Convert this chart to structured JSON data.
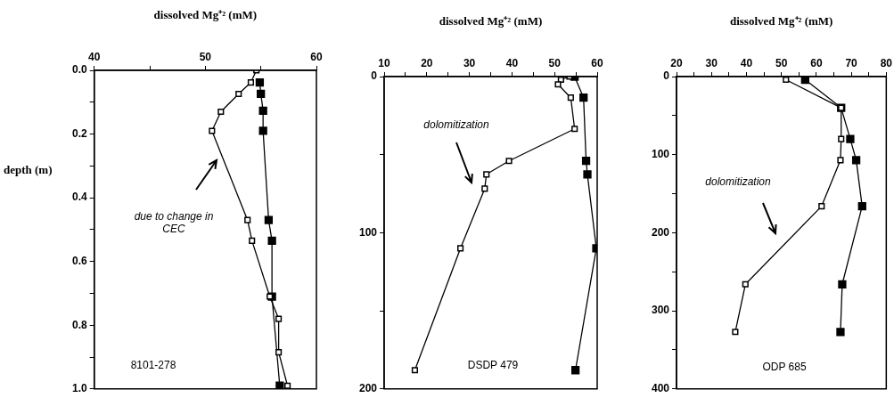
{
  "chart_data": [
    {
      "type": "line",
      "xlabel": "dissolved Mg⁺² (mM)",
      "ylabel": "depth (m)",
      "xlim": [
        40,
        60
      ],
      "xticks": [
        40,
        {
          "value": 45,
          "label": null
        },
        50,
        {
          "value": 55,
          "label": null
        },
        60
      ],
      "ylim": [
        1,
        0
      ],
      "yticks": [
        {
          "value": 0,
          "label": "0.0"
        },
        {
          "value": 0.1,
          "label": null
        },
        {
          "value": 0.2,
          "label": "0.2"
        },
        {
          "value": 0.3,
          "label": null
        },
        {
          "value": 0.4,
          "label": "0.4"
        },
        {
          "value": 0.5,
          "label": null
        },
        {
          "value": 0.6,
          "label": "0.6"
        },
        {
          "value": 0.7,
          "label": null
        },
        {
          "value": 0.8,
          "label": "0.8"
        },
        {
          "value": 0.9,
          "label": null
        },
        {
          "value": 1,
          "label": "1.0"
        }
      ],
      "marker": "square",
      "annotations": [
        "due to change in CEC",
        "8101-278"
      ],
      "series": [
        {
          "color": "#ffffff",
          "x": [
            54.6,
            54.1,
            53.0,
            51.4,
            50.6,
            53.8,
            54.2,
            55.8,
            56.6,
            56.6,
            57.4
          ],
          "values": [
            0,
            0.038,
            0.074,
            0.13,
            0.19,
            0.47,
            0.535,
            0.71,
            0.78,
            0.885,
            0.99
          ]
        },
        {
          "color": "#000000",
          "x": [
            54.9,
            55.0,
            55.2,
            55.2,
            55.7,
            56.0,
            56.0,
            56.7
          ],
          "values": [
            0.038,
            0.074,
            0.127,
            0.19,
            0.47,
            0.535,
            0.71,
            0.99
          ]
        }
      ]
    },
    {
      "type": "line",
      "xlabel": "dissolved Mg⁺² (mM)",
      "xlim": [
        10,
        60
      ],
      "xticks": [
        10,
        {
          "value": 15,
          "label": null
        },
        20,
        {
          "value": 25,
          "label": null
        },
        30,
        {
          "value": 35,
          "label": null
        },
        40,
        {
          "value": 45,
          "label": null
        },
        50,
        {
          "value": 55,
          "label": null
        },
        60
      ],
      "ylim": [
        200,
        0
      ],
      "yticks": [
        0,
        {
          "value": 50,
          "label": null
        },
        100,
        {
          "value": 150,
          "label": null
        },
        200
      ],
      "marker": "square",
      "annotations": [
        "dolomitization",
        "DSDP 479"
      ],
      "series": [
        {
          "color": "#ffffff",
          "x": [
            53.5,
            51.5,
            50.8,
            53.8,
            54.7,
            39.3,
            34.0,
            33.6,
            27.9,
            17.2
          ],
          "values": [
            0,
            2,
            5,
            13.5,
            33.5,
            54,
            62.6,
            71.8,
            110,
            188
          ]
        },
        {
          "color": "#000000",
          "x": [
            54.7,
            56.8,
            57.4,
            57.7,
            59.8,
            54.9
          ],
          "values": [
            0,
            13.5,
            54,
            62.6,
            110,
            188
          ]
        }
      ]
    },
    {
      "type": "line",
      "xlabel": "dissolved Mg⁺² (mM)",
      "xlim": [
        20,
        80
      ],
      "xticks": [
        20,
        {
          "value": 25,
          "label": null
        },
        30,
        {
          "value": 35,
          "label": null
        },
        40,
        {
          "value": 45,
          "label": null
        },
        50,
        {
          "value": 55,
          "label": null
        },
        60,
        {
          "value": 65,
          "label": null
        },
        70,
        {
          "value": 75,
          "label": null
        },
        80
      ],
      "ylim": [
        400,
        0
      ],
      "yticks": [
        0,
        {
          "value": 50,
          "label": null
        },
        100,
        {
          "value": 150,
          "label": null
        },
        200,
        {
          "value": 250,
          "label": null
        },
        300,
        {
          "value": 350,
          "label": null
        },
        400
      ],
      "marker": "square",
      "annotations": [
        "dolomitization",
        "ODP 685"
      ],
      "series": [
        {
          "color": "#ffffff",
          "x": [
            51.3,
            67.1,
            67.1,
            66.9,
            61.5,
            39.7,
            36.8
          ],
          "values": [
            4,
            40,
            80,
            107,
            166,
            266,
            327
          ]
        },
        {
          "color": "#000000",
          "x": [
            56.8,
            67.1,
            69.7,
            71.4,
            73.1,
            67.4,
            66.9
          ],
          "values": [
            4,
            40,
            80,
            107,
            166,
            266,
            327
          ]
        }
      ]
    }
  ]
}
